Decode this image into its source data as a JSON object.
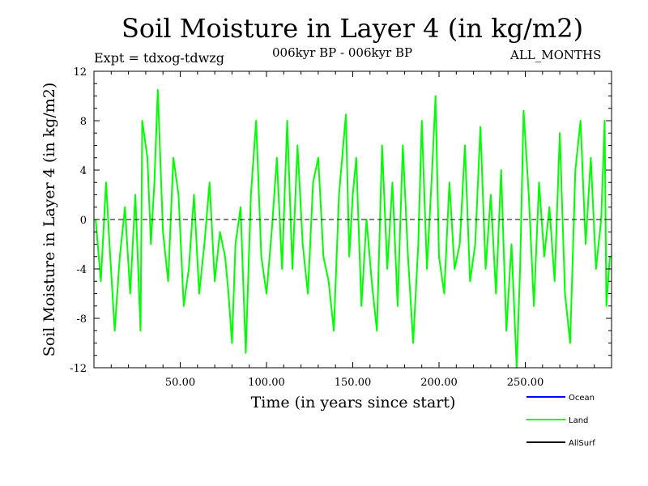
{
  "chart_data": {
    "type": "line",
    "title": "Soil Moisture in Layer 4 (in kg/m2)",
    "expt_label": "Expt = tdxog-tdwzg",
    "period_label": "006kyr BP - 006kyr BP",
    "months_label": "ALL_MONTHS",
    "xlabel": "Time (in years since start)",
    "ylabel": "Soil Moisture in Layer 4 (in kg/m2)",
    "xlim": [
      0,
      300
    ],
    "ylim": [
      -12,
      12
    ],
    "x_ticks": [
      50,
      100,
      150,
      200,
      250
    ],
    "x_tick_labels": [
      "50.00",
      "100.00",
      "150.00",
      "200.00",
      "250.00"
    ],
    "y_ticks": [
      -12,
      -8,
      -4,
      0,
      4,
      8,
      12
    ],
    "y_tick_labels": [
      "-12",
      "-8",
      "-4",
      "0",
      "4",
      "8",
      "12"
    ],
    "zero_line": "dashed",
    "grid": false,
    "legend_position": "bottom-right",
    "series": [
      {
        "name": "Ocean",
        "color": "#0000ff",
        "values": []
      },
      {
        "name": "Land",
        "color": "#00ff00",
        "x": [
          1,
          4,
          7,
          9,
          12,
          15,
          18,
          21,
          24,
          27,
          28,
          31,
          33,
          35,
          37,
          40,
          43,
          46,
          49,
          52,
          55,
          58,
          61,
          64,
          67,
          70,
          73,
          76,
          78,
          80,
          82,
          85,
          88,
          91,
          94,
          97,
          100,
          103,
          106,
          109,
          112,
          115,
          118,
          121,
          124,
          127,
          130,
          133,
          136,
          139,
          142,
          146,
          148,
          150,
          152,
          155,
          158,
          161,
          164,
          167,
          170,
          173,
          176,
          179,
          182,
          185,
          188,
          190,
          193,
          196,
          198,
          200,
          203,
          206,
          209,
          212,
          215,
          218,
          221,
          224,
          227,
          230,
          233,
          236,
          239,
          242,
          245,
          247,
          249,
          252,
          255,
          258,
          261,
          264,
          267,
          270,
          273,
          276,
          279,
          282,
          285,
          288,
          291,
          294,
          296,
          297,
          299
        ],
        "values": [
          0,
          -5,
          3,
          -2,
          -9,
          -3,
          1,
          -6,
          2,
          -9,
          8,
          5,
          -2,
          3,
          10.5,
          -1,
          -5,
          5,
          2,
          -7,
          -4,
          2,
          -6,
          -2,
          3,
          -5,
          -1,
          -3,
          -6,
          -10,
          -2,
          1,
          -10.8,
          2,
          8,
          -3,
          -6,
          -1,
          5,
          -4,
          8,
          -4,
          6,
          -2,
          -6,
          3,
          5,
          -3,
          -5,
          -9,
          2,
          8.5,
          -3,
          2,
          5,
          -7,
          0,
          -5,
          -9,
          6,
          -4,
          3,
          -7,
          6,
          -3,
          -10,
          -2,
          8,
          -4,
          4,
          10,
          -3,
          -6,
          3,
          -4,
          -2,
          6,
          -5,
          -2,
          7.5,
          -4,
          2,
          -6,
          4,
          -9,
          -2,
          -12,
          -4,
          8.8,
          2,
          -7,
          3,
          -3,
          1,
          -5,
          7,
          -6,
          -10,
          4,
          8,
          -2,
          5,
          -4,
          0,
          8,
          -7,
          -3
        ]
      },
      {
        "name": "AllSurf",
        "color": "#000000",
        "values": []
      }
    ]
  }
}
